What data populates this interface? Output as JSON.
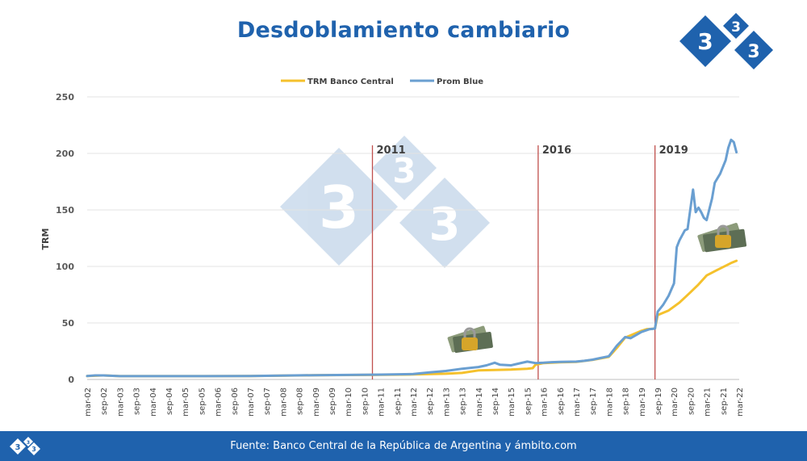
{
  "header": {
    "title": "Desdoblamiento cambiario",
    "logo_icon": "333-diamond-logo-icon",
    "brand_color": "#1f62ad"
  },
  "chart_data": {
    "type": "line",
    "title": "Desdoblamiento cambiario",
    "ylabel": "TRM",
    "xlabel": "",
    "ylim": [
      0,
      250
    ],
    "yticks": [
      0,
      50,
      100,
      150,
      200,
      250
    ],
    "grid": true,
    "legend": "top-center",
    "x_start": "mar-02",
    "x_tick_labels": [
      "mar-02",
      "sep-02",
      "mar-03",
      "sep-03",
      "mar-04",
      "sep-04",
      "mar-05",
      "sep-05",
      "mar-06",
      "sep-06",
      "mar-07",
      "sep-07",
      "mar-08",
      "sep-08",
      "mar-09",
      "sep-09",
      "mar-10",
      "sep-10",
      "mar-11",
      "sep-11",
      "mar-12",
      "sep-12",
      "mar-13",
      "sep-13",
      "mar-14",
      "sep-14",
      "mar-15",
      "sep-15",
      "mar-16",
      "sep-16",
      "mar-17",
      "sep-17",
      "mar-18",
      "sep-18",
      "mar-19",
      "sep-19",
      "mar-20",
      "sep-20",
      "mar-21",
      "sep-21",
      "mar-22"
    ],
    "annotations": [
      {
        "label": "2011",
        "x": "dic-10"
      },
      {
        "label": "2016",
        "x": "ene-16"
      },
      {
        "label": "2019",
        "x": "ago-19"
      }
    ],
    "annotation_color": "#c0504d",
    "series": [
      {
        "name": "TRM Banco Central",
        "color": "#f5c12c",
        "points": [
          [
            "mar-02",
            3
          ],
          [
            "sep-02",
            3.6
          ],
          [
            "mar-03",
            2.9
          ],
          [
            "sep-03",
            2.9
          ],
          [
            "mar-05",
            2.9
          ],
          [
            "mar-07",
            3.1
          ],
          [
            "mar-09",
            3.7
          ],
          [
            "mar-10",
            3.9
          ],
          [
            "mar-11",
            4.05
          ],
          [
            "mar-12",
            4.4
          ],
          [
            "mar-13",
            5.1
          ],
          [
            "sep-13",
            5.8
          ],
          [
            "mar-14",
            8
          ],
          [
            "sep-14",
            8.4
          ],
          [
            "mar-15",
            8.8
          ],
          [
            "sep-15",
            9.5
          ],
          [
            "nov-15",
            10
          ],
          [
            "dic-15",
            13
          ],
          [
            "mar-16",
            14.5
          ],
          [
            "sep-16",
            15.2
          ],
          [
            "mar-17",
            15.5
          ],
          [
            "sep-17",
            17.3
          ],
          [
            "mar-18",
            20
          ],
          [
            "jun-18",
            28
          ],
          [
            "sep-18",
            37
          ],
          [
            "mar-19",
            43
          ],
          [
            "may-19",
            44.5
          ],
          [
            "ago-19",
            45
          ],
          [
            "sep-19",
            57
          ],
          [
            "ene-20",
            61
          ],
          [
            "may-20",
            68
          ],
          [
            "sep-20",
            77
          ],
          [
            "dic-20",
            84
          ],
          [
            "mar-21",
            92
          ],
          [
            "jul-21",
            97
          ],
          [
            "dic-21",
            103
          ],
          [
            "feb-22",
            105
          ]
        ]
      },
      {
        "name": "Prom Blue",
        "color": "#6a9fd1",
        "points": [
          [
            "mar-02",
            3
          ],
          [
            "jun-02",
            3.6
          ],
          [
            "sep-02",
            3.6
          ],
          [
            "mar-03",
            2.9
          ],
          [
            "sep-03",
            2.9
          ],
          [
            "mar-05",
            2.9
          ],
          [
            "mar-07",
            3.1
          ],
          [
            "mar-09",
            3.8
          ],
          [
            "mar-10",
            4
          ],
          [
            "mar-11",
            4.3
          ],
          [
            "mar-12",
            4.8
          ],
          [
            "sep-12",
            6.3
          ],
          [
            "mar-13",
            7.5
          ],
          [
            "sep-13",
            9.5
          ],
          [
            "mar-14",
            11
          ],
          [
            "jun-14",
            12.5
          ],
          [
            "sep-14",
            14.8
          ],
          [
            "nov-14",
            13
          ],
          [
            "mar-15",
            12.5
          ],
          [
            "sep-15",
            15.8
          ],
          [
            "dic-15",
            14.5
          ],
          [
            "mar-16",
            14.8
          ],
          [
            "jun-16",
            15.3
          ],
          [
            "sep-16",
            15.5
          ],
          [
            "mar-17",
            15.8
          ],
          [
            "jun-17",
            16.5
          ],
          [
            "sep-17",
            17.5
          ],
          [
            "dic-17",
            19
          ],
          [
            "mar-18",
            20.5
          ],
          [
            "jun-18",
            30
          ],
          [
            "sep-18",
            37.5
          ],
          [
            "nov-18",
            36.5
          ],
          [
            "mar-19",
            42
          ],
          [
            "jun-19",
            44.5
          ],
          [
            "ago-19",
            45
          ],
          [
            "sep-19",
            60
          ],
          [
            "nov-19",
            66
          ],
          [
            "ene-20",
            74
          ],
          [
            "mar-20",
            85
          ],
          [
            "abr-20",
            117
          ],
          [
            "may-20",
            123
          ],
          [
            "jul-20",
            132
          ],
          [
            "ago-20",
            133
          ],
          [
            "oct-20",
            168
          ],
          [
            "nov-20",
            148
          ],
          [
            "dic-20",
            152
          ],
          [
            "ene-21",
            148
          ],
          [
            "feb-21",
            143
          ],
          [
            "mar-21",
            141
          ],
          [
            "may-21",
            160
          ],
          [
            "jun-21",
            174
          ],
          [
            "ago-21",
            182
          ],
          [
            "oct-21",
            194
          ],
          [
            "nov-21",
            205
          ],
          [
            "dic-21",
            212
          ],
          [
            "ene-22",
            210
          ],
          [
            "feb-22",
            201
          ]
        ]
      }
    ]
  },
  "footer": {
    "source": "Fuente: Banco Central de la República de Argentina y ámbito.com",
    "logo_icon": "333-diamond-logo-icon"
  }
}
